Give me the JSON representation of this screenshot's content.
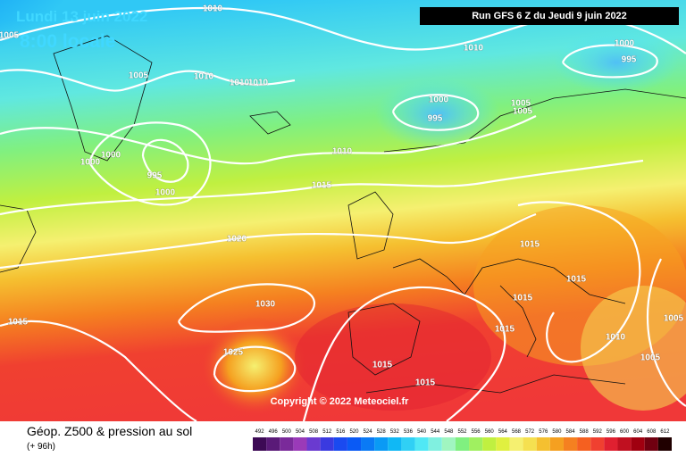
{
  "header": {
    "date": "Lundi 13 juin 2022",
    "time": "8:00 locale",
    "run": "Run GFS 6 Z du Jeudi 9 juin 2022"
  },
  "copyright": "Copyright © 2022 Meteociel.fr",
  "footer": {
    "title": "Géop. Z500 & pression au sol",
    "lead": "(+ 96h)"
  },
  "isobar_labels": [
    1010,
    1005,
    1005,
    1010,
    1010,
    1010,
    1010,
    1000,
    995,
    1000,
    995,
    1005,
    1005,
    1000,
    1000,
    995,
    1000,
    1010,
    1015,
    1020,
    1015,
    1015,
    1015,
    1030,
    1015,
    1015,
    1005,
    1010,
    1025,
    1015,
    1005,
    1015
  ],
  "scale": {
    "values": [
      492,
      496,
      500,
      504,
      508,
      512,
      516,
      520,
      524,
      528,
      532,
      536,
      540,
      544,
      548,
      552,
      556,
      560,
      564,
      568,
      572,
      576,
      580,
      584,
      588,
      592,
      596,
      600,
      604,
      608,
      612
    ],
    "colors": [
      "#3d0a55",
      "#5a1a78",
      "#7a2a9a",
      "#9a3ab8",
      "#6a3ad0",
      "#3a3ae0",
      "#1a4af0",
      "#0a5af5",
      "#0a7af5",
      "#0a9af5",
      "#10b8f5",
      "#30d0f5",
      "#50e8f5",
      "#80f0e0",
      "#a0f5c0",
      "#80f080",
      "#a0f060",
      "#c0f040",
      "#e0f040",
      "#f5f070",
      "#f5e050",
      "#f5c030",
      "#f5a020",
      "#f58020",
      "#f56020",
      "#f04030",
      "#e02030",
      "#c01020",
      "#a00010",
      "#700010",
      "#200000"
    ]
  }
}
